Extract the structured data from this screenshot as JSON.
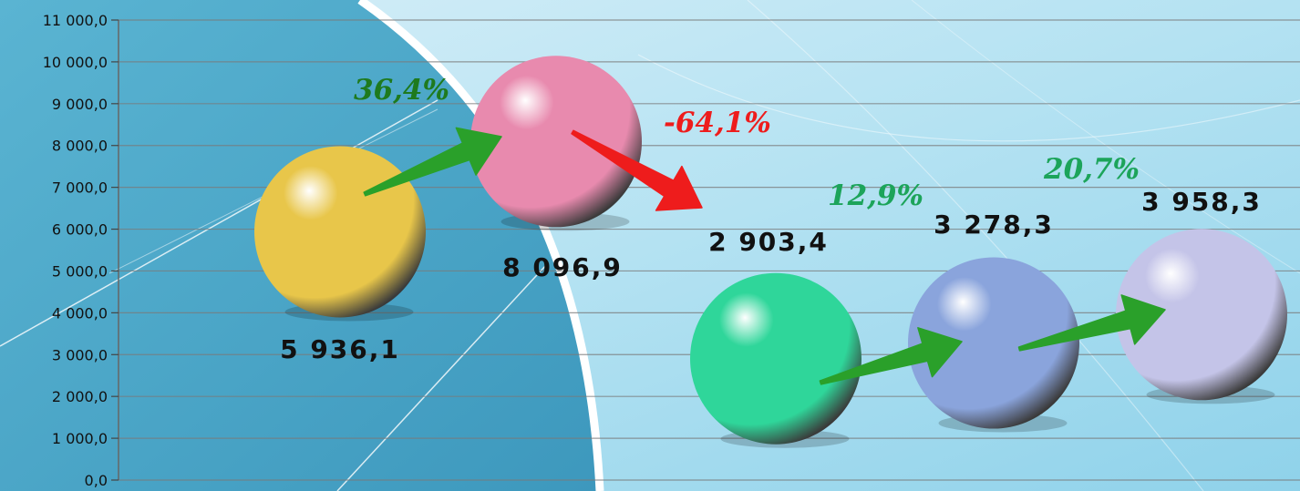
{
  "chart_data": {
    "type": "scatter",
    "title": "",
    "xlabel": "",
    "ylabel": "",
    "ylim": [
      0,
      11000
    ],
    "yticks": [
      "0,0",
      "1 000,0",
      "2 000,0",
      "3 000,0",
      "4 000,0",
      "5 000,0",
      "6 000,0",
      "7 000,0",
      "8 000,0",
      "9 000,0",
      "10 000,0",
      "11 000,0"
    ],
    "grid": true,
    "legend": "none",
    "points": [
      {
        "value": 5936.1,
        "label": "5 936,1",
        "color": "#e8c64a"
      },
      {
        "value": 8096.9,
        "label": "8 096,9",
        "color": "#e88aae"
      },
      {
        "value": 2903.4,
        "label": "2 903,4",
        "color": "#2fd69a"
      },
      {
        "value": 3278.3,
        "label": "3 278,3",
        "color": "#8aa4dc"
      },
      {
        "value": 3958.3,
        "label": "3 958,3",
        "color": "#c4c4e8"
      }
    ],
    "changes": [
      {
        "label": "36,4%",
        "direction": "up",
        "color": "#1e7a1e"
      },
      {
        "label": "-64,1%",
        "direction": "down",
        "color": "#ee1c1c"
      },
      {
        "label": "12,9%",
        "direction": "up",
        "color": "#1ca45a"
      },
      {
        "label": "20,7%",
        "direction": "up",
        "color": "#1ca45a"
      }
    ]
  }
}
